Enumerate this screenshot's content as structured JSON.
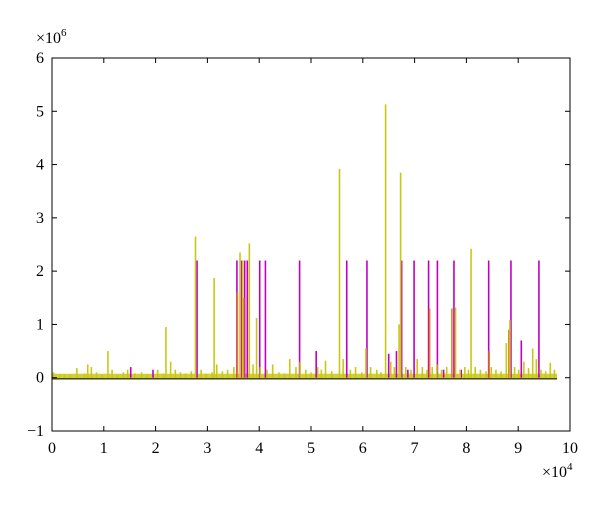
{
  "chart_data": {
    "type": "line",
    "title": "",
    "xlabel": "",
    "ylabel": "",
    "xlim": [
      0,
      100000
    ],
    "ylim": [
      -1000000,
      6000000
    ],
    "x_ticks": [
      0,
      10000,
      20000,
      30000,
      40000,
      50000,
      60000,
      70000,
      80000,
      90000,
      100000
    ],
    "y_ticks": [
      -1000000,
      0,
      1000000,
      2000000,
      3000000,
      4000000,
      5000000,
      6000000
    ],
    "x_tick_labels": [
      "0",
      "1",
      "2",
      "3",
      "4",
      "5",
      "6",
      "7",
      "8",
      "9",
      "10"
    ],
    "y_tick_labels": [
      "−1",
      "0",
      "1",
      "2",
      "3",
      "4",
      "5",
      "6"
    ],
    "x_multiplier": {
      "base": "×10",
      "exp": "4"
    },
    "y_multiplier": {
      "base": "×10",
      "exp": "6"
    },
    "grid": false,
    "legend": "none",
    "colors": {
      "magenta": "#c000c0",
      "olive": "#c8c814",
      "orange": "#e08020"
    },
    "series": [
      {
        "color": "magenta",
        "spikes": [
          {
            "x": 15200,
            "y": 200000
          },
          {
            "x": 19500,
            "y": 150000
          },
          {
            "x": 28000,
            "y": 2200000
          },
          {
            "x": 35700,
            "y": 2200000
          },
          {
            "x": 36600,
            "y": 2200000
          },
          {
            "x": 37200,
            "y": 2200000
          },
          {
            "x": 37700,
            "y": 2200000
          },
          {
            "x": 40100,
            "y": 2200000
          },
          {
            "x": 41200,
            "y": 2200000
          },
          {
            "x": 47800,
            "y": 2200000
          },
          {
            "x": 51000,
            "y": 500000
          },
          {
            "x": 56900,
            "y": 2200000
          },
          {
            "x": 60800,
            "y": 2200000
          },
          {
            "x": 65000,
            "y": 450000
          },
          {
            "x": 66500,
            "y": 500000
          },
          {
            "x": 67500,
            "y": 2200000
          },
          {
            "x": 68700,
            "y": 150000
          },
          {
            "x": 69900,
            "y": 2200000
          },
          {
            "x": 72700,
            "y": 2200000
          },
          {
            "x": 74400,
            "y": 2200000
          },
          {
            "x": 75600,
            "y": 150000
          },
          {
            "x": 77600,
            "y": 2200000
          },
          {
            "x": 79000,
            "y": 150000
          },
          {
            "x": 84300,
            "y": 2200000
          },
          {
            "x": 88600,
            "y": 2200000
          },
          {
            "x": 90600,
            "y": 700000
          },
          {
            "x": 94000,
            "y": 2200000
          }
        ]
      },
      {
        "color": "orange",
        "spikes": [
          {
            "x": 35800,
            "y": 1600000
          },
          {
            "x": 37000,
            "y": 1500000
          },
          {
            "x": 72900,
            "y": 1300000
          },
          {
            "x": 77200,
            "y": 1300000
          },
          {
            "x": 84400,
            "y": 500000
          },
          {
            "x": 88200,
            "y": 900000
          }
        ]
      },
      {
        "color": "olive",
        "spikes": [
          {
            "x": 300,
            "y": 100000
          },
          {
            "x": 1500,
            "y": 60000
          },
          {
            "x": 2400,
            "y": 50000
          },
          {
            "x": 3500,
            "y": 60000
          },
          {
            "x": 4800,
            "y": 180000
          },
          {
            "x": 6300,
            "y": 80000
          },
          {
            "x": 6900,
            "y": 250000
          },
          {
            "x": 7600,
            "y": 200000
          },
          {
            "x": 8600,
            "y": 100000
          },
          {
            "x": 9700,
            "y": 60000
          },
          {
            "x": 10800,
            "y": 500000
          },
          {
            "x": 11600,
            "y": 150000
          },
          {
            "x": 12600,
            "y": 60000
          },
          {
            "x": 13800,
            "y": 100000
          },
          {
            "x": 14600,
            "y": 150000
          },
          {
            "x": 16000,
            "y": 80000
          },
          {
            "x": 17300,
            "y": 100000
          },
          {
            "x": 18400,
            "y": 60000
          },
          {
            "x": 20400,
            "y": 150000
          },
          {
            "x": 21500,
            "y": 80000
          },
          {
            "x": 22000,
            "y": 950000
          },
          {
            "x": 22900,
            "y": 300000
          },
          {
            "x": 23800,
            "y": 150000
          },
          {
            "x": 24800,
            "y": 100000
          },
          {
            "x": 25800,
            "y": 80000
          },
          {
            "x": 26900,
            "y": 120000
          },
          {
            "x": 27700,
            "y": 2650000
          },
          {
            "x": 28800,
            "y": 150000
          },
          {
            "x": 29800,
            "y": 80000
          },
          {
            "x": 30900,
            "y": 100000
          },
          {
            "x": 31300,
            "y": 1870000
          },
          {
            "x": 31800,
            "y": 250000
          },
          {
            "x": 32900,
            "y": 120000
          },
          {
            "x": 33900,
            "y": 150000
          },
          {
            "x": 35100,
            "y": 200000
          },
          {
            "x": 36300,
            "y": 2350000
          },
          {
            "x": 36800,
            "y": 2200000
          },
          {
            "x": 38100,
            "y": 2520000
          },
          {
            "x": 38800,
            "y": 250000
          },
          {
            "x": 39500,
            "y": 1120000
          },
          {
            "x": 40200,
            "y": 200000
          },
          {
            "x": 41500,
            "y": 150000
          },
          {
            "x": 42600,
            "y": 250000
          },
          {
            "x": 43800,
            "y": 100000
          },
          {
            "x": 44900,
            "y": 80000
          },
          {
            "x": 45900,
            "y": 350000
          },
          {
            "x": 47100,
            "y": 200000
          },
          {
            "x": 47900,
            "y": 300000
          },
          {
            "x": 49000,
            "y": 150000
          },
          {
            "x": 50000,
            "y": 100000
          },
          {
            "x": 51300,
            "y": 200000
          },
          {
            "x": 52000,
            "y": 150000
          },
          {
            "x": 52800,
            "y": 320000
          },
          {
            "x": 54000,
            "y": 120000
          },
          {
            "x": 55500,
            "y": 3920000
          },
          {
            "x": 56200,
            "y": 350000
          },
          {
            "x": 57600,
            "y": 150000
          },
          {
            "x": 58600,
            "y": 200000
          },
          {
            "x": 59800,
            "y": 100000
          },
          {
            "x": 60600,
            "y": 550000
          },
          {
            "x": 61500,
            "y": 200000
          },
          {
            "x": 62700,
            "y": 150000
          },
          {
            "x": 63500,
            "y": 100000
          },
          {
            "x": 64400,
            "y": 5130000
          },
          {
            "x": 65400,
            "y": 300000
          },
          {
            "x": 66100,
            "y": 200000
          },
          {
            "x": 67000,
            "y": 1000000
          },
          {
            "x": 67300,
            "y": 3850000
          },
          {
            "x": 68300,
            "y": 200000
          },
          {
            "x": 69300,
            "y": 150000
          },
          {
            "x": 70500,
            "y": 350000
          },
          {
            "x": 71500,
            "y": 200000
          },
          {
            "x": 72400,
            "y": 150000
          },
          {
            "x": 73400,
            "y": 200000
          },
          {
            "x": 74300,
            "y": 250000
          },
          {
            "x": 75200,
            "y": 150000
          },
          {
            "x": 76200,
            "y": 200000
          },
          {
            "x": 77900,
            "y": 1320000
          },
          {
            "x": 78800,
            "y": 150000
          },
          {
            "x": 79700,
            "y": 200000
          },
          {
            "x": 80400,
            "y": 150000
          },
          {
            "x": 80900,
            "y": 2420000
          },
          {
            "x": 81700,
            "y": 200000
          },
          {
            "x": 82700,
            "y": 150000
          },
          {
            "x": 83800,
            "y": 120000
          },
          {
            "x": 84800,
            "y": 200000
          },
          {
            "x": 85700,
            "y": 150000
          },
          {
            "x": 86700,
            "y": 120000
          },
          {
            "x": 87700,
            "y": 650000
          },
          {
            "x": 88400,
            "y": 1080000
          },
          {
            "x": 89300,
            "y": 200000
          },
          {
            "x": 90100,
            "y": 150000
          },
          {
            "x": 91100,
            "y": 300000
          },
          {
            "x": 92000,
            "y": 180000
          },
          {
            "x": 92800,
            "y": 550000
          },
          {
            "x": 93500,
            "y": 350000
          },
          {
            "x": 94400,
            "y": 150000
          },
          {
            "x": 95300,
            "y": 120000
          },
          {
            "x": 96200,
            "y": 280000
          },
          {
            "x": 97000,
            "y": 150000
          }
        ]
      }
    ]
  }
}
